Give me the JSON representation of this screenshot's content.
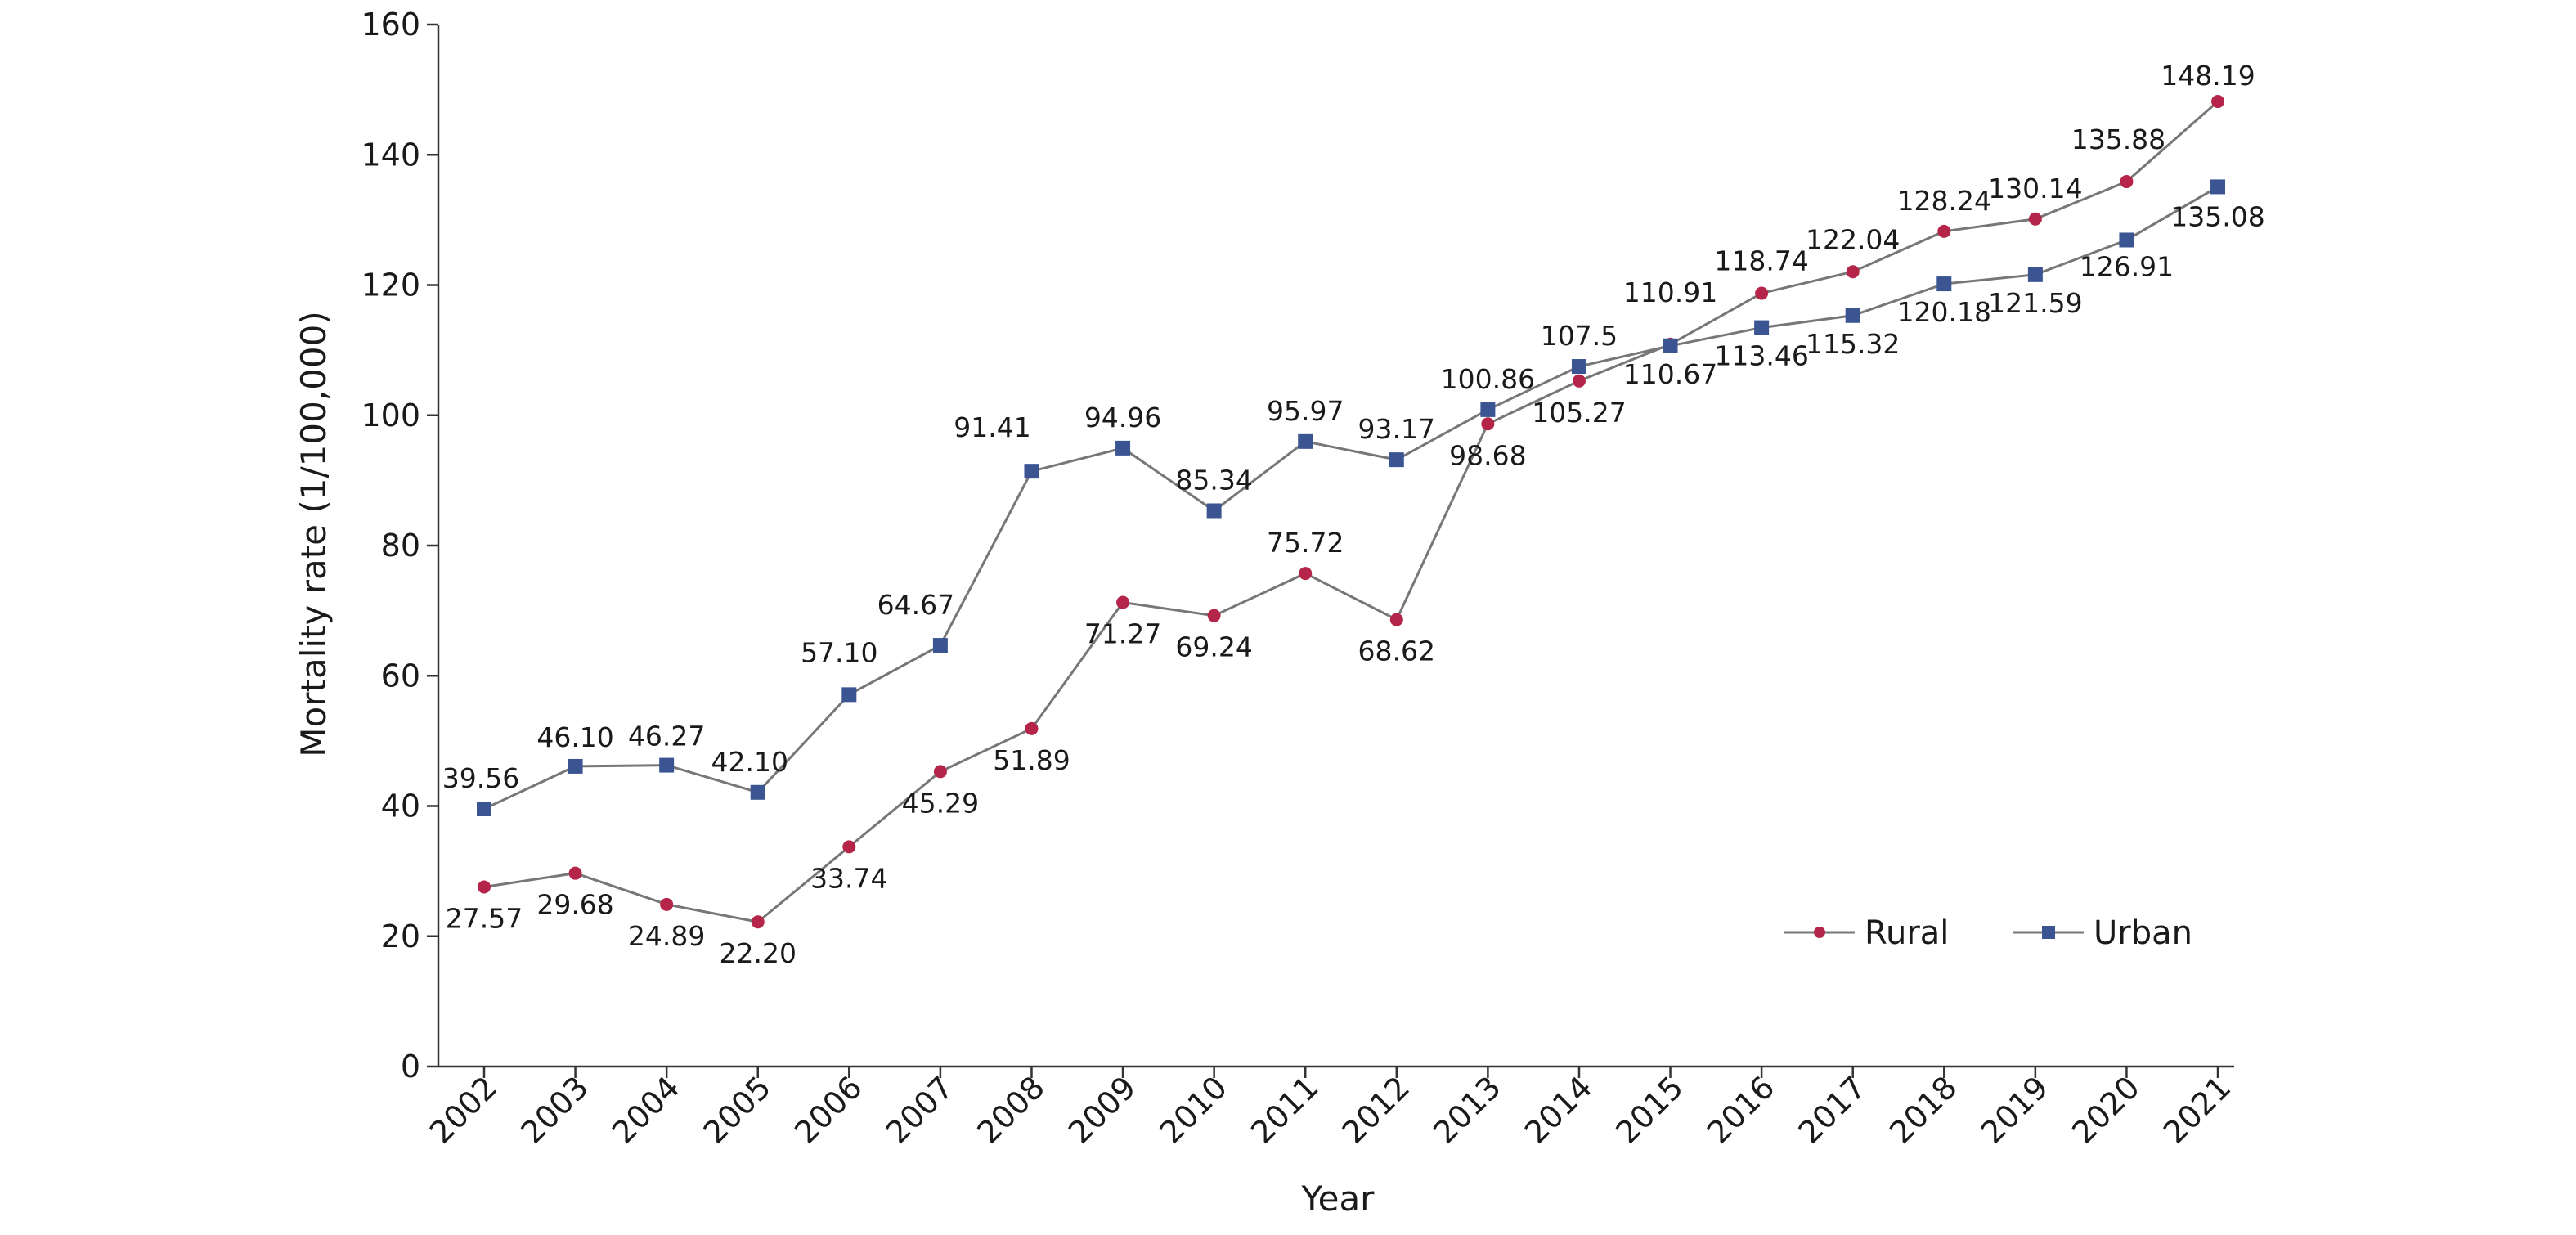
{
  "chart_data": {
    "type": "line",
    "xlabel": "Year",
    "ylabel": "Mortality rate (1/100,000)",
    "ylim": [
      0,
      160
    ],
    "yticks": [
      0,
      20,
      40,
      60,
      80,
      100,
      120,
      140,
      160
    ],
    "categories": [
      "2002",
      "2003",
      "2004",
      "2005",
      "2006",
      "2007",
      "2008",
      "2009",
      "2010",
      "2011",
      "2012",
      "2013",
      "2014",
      "2015",
      "2016",
      "2017",
      "2018",
      "2019",
      "2020",
      "2021"
    ],
    "series": [
      {
        "name": "Rural",
        "color": "#b5254a",
        "marker": "circle",
        "values": [
          27.57,
          29.68,
          24.89,
          22.2,
          33.74,
          45.29,
          51.89,
          71.27,
          69.24,
          75.72,
          68.62,
          98.68,
          105.27,
          110.91,
          118.74,
          122.04,
          128.24,
          130.14,
          135.88,
          148.19
        ],
        "labels": [
          "27.57",
          "29.68",
          "24.89",
          "22.20",
          "33.74",
          "45.29",
          "51.89",
          "71.27",
          "69.24",
          "75.72",
          "68.62",
          "98.68",
          "105.27",
          "110.91",
          "118.74",
          "122.04",
          "128.24",
          "130.14",
          "135.88",
          "148.19"
        ]
      },
      {
        "name": "Urban",
        "color": "#3b5593",
        "marker": "square",
        "values": [
          39.56,
          46.1,
          46.27,
          42.1,
          57.1,
          64.67,
          91.41,
          94.96,
          85.34,
          95.97,
          93.17,
          100.86,
          107.5,
          110.67,
          113.46,
          115.32,
          120.18,
          121.59,
          126.91,
          135.08
        ],
        "labels": [
          "39.56",
          "46.10",
          "46.27",
          "42.10",
          "57.10",
          "64.67",
          "91.41",
          "94.96",
          "85.34",
          "95.97",
          "93.17",
          "100.86",
          "107.5",
          "110.67",
          "113.46",
          "115.32",
          "120.18",
          "121.59",
          "126.91",
          "135.08"
        ]
      }
    ],
    "line_color": "#777777",
    "grid": false,
    "legend_position": "bottom-right"
  }
}
